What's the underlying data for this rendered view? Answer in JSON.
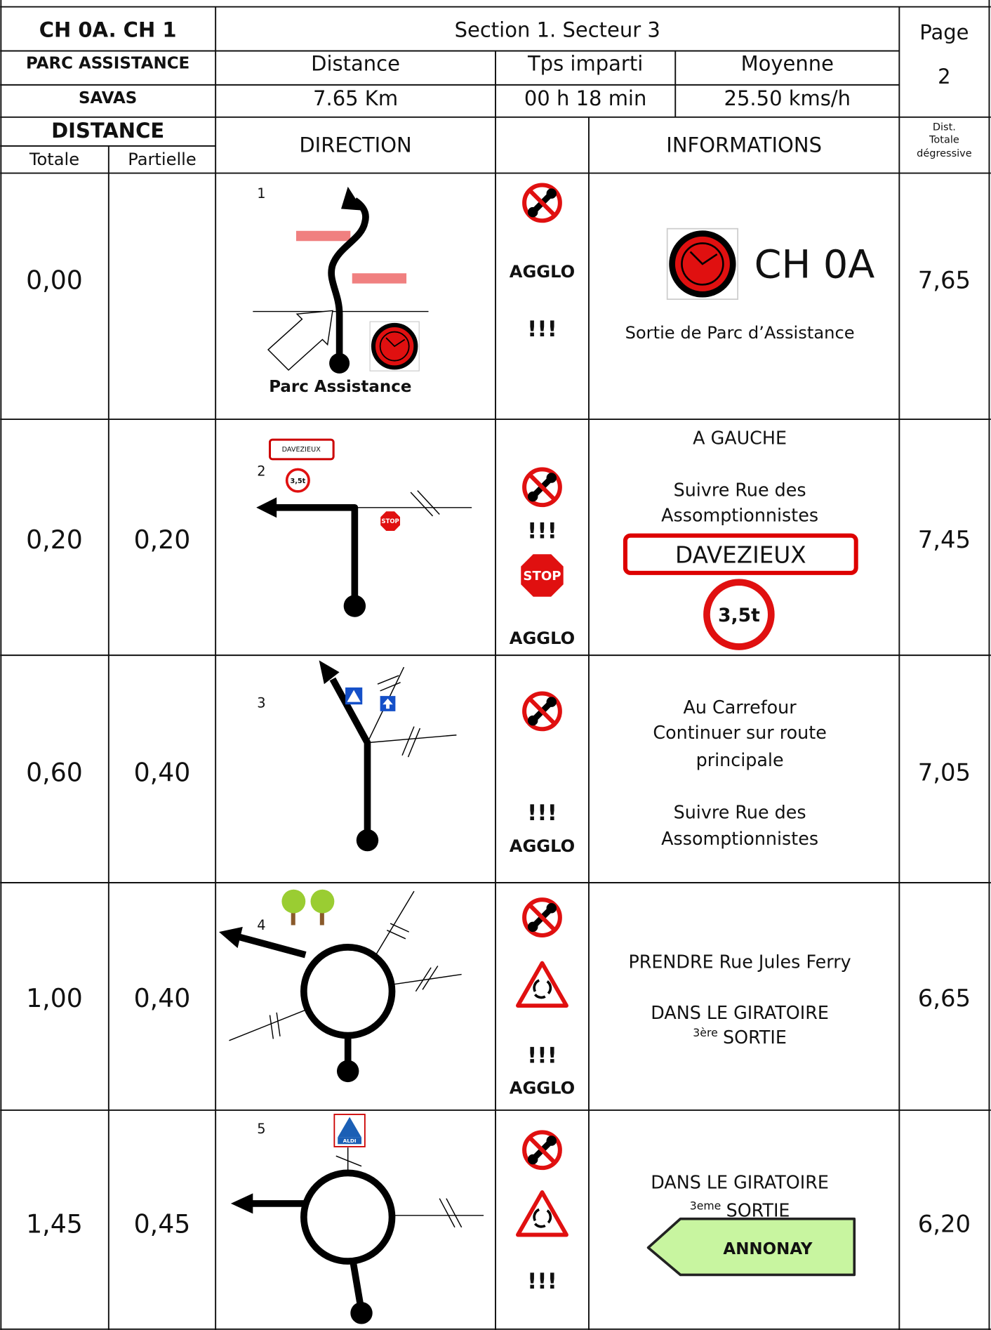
{
  "header": {
    "code": "CH 0A. CH 1",
    "location": "PARC ASSISTANCE",
    "town": "SAVAS",
    "section": "Section 1. Secteur 3",
    "page_label": "Page",
    "page": "2",
    "distance_label": "Distance",
    "distance": "7.65 Km",
    "time_label": "Tps imparti",
    "time": "00 h 18 min",
    "speed_label": "Moyenne",
    "speed": "25.50 kms/h"
  },
  "columns": {
    "distance": "DISTANCE",
    "total": "Totale",
    "partial": "Partielle",
    "direction": "DIRECTION",
    "informations": "INFORMATIONS",
    "remaining": [
      "Dist.",
      "Totale",
      "dégressive"
    ]
  },
  "rows": [
    {
      "total": "0,00",
      "number": "1",
      "direction_label": "Parc Assistance",
      "alerts": [
        "AGGLO",
        "!!!"
      ],
      "control": "CH 0A",
      "info": [
        "Sortie de Parc d’Assistance"
      ],
      "remaining": "7,65"
    },
    {
      "total": "0,20",
      "partial": "0,20",
      "number": "2",
      "direction_signs": [
        "DAVEZIEUX",
        "3,5t",
        "STOP"
      ],
      "alerts": [
        "!!!",
        "STOP",
        "AGGLO"
      ],
      "info": [
        "A GAUCHE",
        "Suivre Rue des",
        "Assomptionnistes"
      ],
      "info_signs": [
        "DAVEZIEUX",
        "3,5t"
      ],
      "remaining": "7,45"
    },
    {
      "total": "0,60",
      "partial": "0,40",
      "number": "3",
      "alerts": [
        "!!!",
        "AGGLO"
      ],
      "info": [
        "Au Carrefour",
        "Continuer sur route",
        "principale",
        "Suivre Rue des",
        "Assomptionnistes"
      ],
      "remaining": "7,05"
    },
    {
      "total": "1,00",
      "partial": "0,40",
      "number": "4",
      "alerts": [
        "!!!",
        "AGGLO"
      ],
      "info": [
        "PRENDRE Rue Jules Ferry",
        "DANS LE GIRATOIRE"
      ],
      "exit": {
        "rank": "3ère",
        "text": "SORTIE"
      },
      "remaining": "6,65"
    },
    {
      "total": "1,45",
      "partial": "0,45",
      "number": "5",
      "direction_signs": [
        "ALDI"
      ],
      "alerts": [
        "!!!"
      ],
      "info": [
        "DANS LE GIRATOIRE"
      ],
      "exit": {
        "rank": "3eme",
        "text": "SORTIE"
      },
      "info_signs": [
        "ANNONAY"
      ],
      "remaining": "6,20"
    }
  ]
}
